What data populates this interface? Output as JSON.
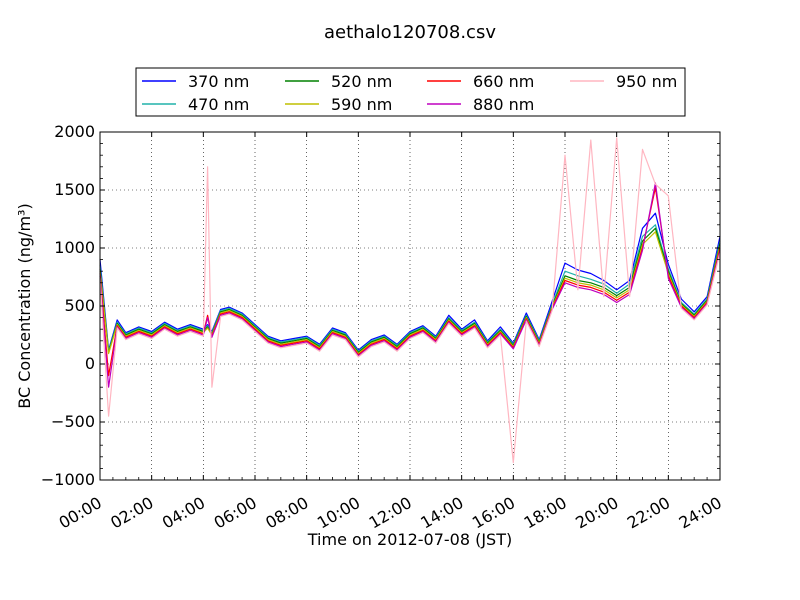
{
  "chart_data": {
    "type": "line",
    "title": "aethalo120708.csv",
    "xlabel": "Time on 2012-07-08 (JST)",
    "ylabel": "BC Concentration (ng/m³)",
    "xlim": [
      "00:00",
      "24:00"
    ],
    "ylim": [
      -1000,
      2000
    ],
    "x_ticks": [
      "00:00",
      "02:00",
      "04:00",
      "06:00",
      "08:00",
      "10:00",
      "12:00",
      "14:00",
      "16:00",
      "18:00",
      "20:00",
      "22:00",
      "24:00"
    ],
    "y_ticks": [
      -1000,
      -500,
      0,
      500,
      1000,
      1500,
      2000
    ],
    "grid": true,
    "legend_position": "top-center",
    "series": [
      {
        "name": "370 nm",
        "color": "#0000ff",
        "x": [
          "00:00",
          "00:20",
          "00:40",
          "01:00",
          "01:30",
          "02:00",
          "02:30",
          "03:00",
          "03:30",
          "04:00",
          "04:10",
          "04:20",
          "04:40",
          "05:00",
          "05:30",
          "06:00",
          "06:30",
          "07:00",
          "07:30",
          "08:00",
          "08:30",
          "09:00",
          "09:30",
          "10:00",
          "10:30",
          "11:00",
          "11:30",
          "12:00",
          "12:30",
          "13:00",
          "13:30",
          "14:00",
          "14:30",
          "15:00",
          "15:30",
          "16:00",
          "16:30",
          "17:00",
          "17:30",
          "18:00",
          "18:30",
          "19:00",
          "19:30",
          "20:00",
          "20:30",
          "21:00",
          "21:30",
          "22:00",
          "22:30",
          "23:00",
          "23:30",
          "24:00"
        ],
        "y": [
          900,
          120,
          380,
          270,
          320,
          280,
          360,
          300,
          340,
          300,
          340,
          280,
          470,
          490,
          440,
          340,
          240,
          200,
          220,
          240,
          170,
          310,
          270,
          120,
          210,
          250,
          170,
          280,
          330,
          240,
          420,
          300,
          380,
          200,
          320,
          180,
          440,
          210,
          540,
          870,
          810,
          780,
          720,
          640,
          720,
          1170,
          1300,
          860,
          560,
          450,
          580,
          1100
        ]
      },
      {
        "name": "470 nm",
        "color": "#20b2aa",
        "x": [
          "00:00",
          "00:20",
          "00:40",
          "01:00",
          "01:30",
          "02:00",
          "02:30",
          "03:00",
          "03:30",
          "04:00",
          "04:10",
          "04:20",
          "04:40",
          "05:00",
          "05:30",
          "06:00",
          "06:30",
          "07:00",
          "07:30",
          "08:00",
          "08:30",
          "09:00",
          "09:30",
          "10:00",
          "10:30",
          "11:00",
          "11:30",
          "12:00",
          "12:30",
          "13:00",
          "13:30",
          "14:00",
          "14:30",
          "15:00",
          "15:30",
          "16:00",
          "16:30",
          "17:00",
          "17:30",
          "18:00",
          "18:30",
          "19:00",
          "19:30",
          "20:00",
          "20:30",
          "21:00",
          "21:30",
          "22:00",
          "22:30",
          "23:00",
          "23:30",
          "24:00"
        ],
        "y": [
          850,
          110,
          360,
          260,
          310,
          270,
          350,
          290,
          330,
          290,
          330,
          270,
          460,
          480,
          430,
          330,
          230,
          190,
          210,
          230,
          160,
          300,
          260,
          110,
          200,
          240,
          160,
          270,
          320,
          230,
          400,
          290,
          360,
          190,
          300,
          170,
          420,
          200,
          510,
          800,
          760,
          730,
          690,
          610,
          690,
          1100,
          1200,
          820,
          530,
          430,
          560,
          1060
        ]
      },
      {
        "name": "520 nm",
        "color": "#008000",
        "x": [
          "00:00",
          "00:20",
          "00:40",
          "01:00",
          "01:30",
          "02:00",
          "02:30",
          "03:00",
          "03:30",
          "04:00",
          "04:10",
          "04:20",
          "04:40",
          "05:00",
          "05:30",
          "06:00",
          "06:30",
          "07:00",
          "07:30",
          "08:00",
          "08:30",
          "09:00",
          "09:30",
          "10:00",
          "10:30",
          "11:00",
          "11:30",
          "12:00",
          "12:30",
          "13:00",
          "13:30",
          "14:00",
          "14:30",
          "15:00",
          "15:30",
          "16:00",
          "16:30",
          "17:00",
          "17:30",
          "18:00",
          "18:30",
          "19:00",
          "19:30",
          "20:00",
          "20:30",
          "21:00",
          "21:30",
          "22:00",
          "22:30",
          "23:00",
          "23:30",
          "24:00"
        ],
        "y": [
          820,
          100,
          350,
          250,
          300,
          260,
          340,
          280,
          320,
          280,
          320,
          260,
          450,
          470,
          420,
          320,
          220,
          180,
          200,
          220,
          150,
          290,
          250,
          100,
          190,
          230,
          150,
          260,
          310,
          220,
          390,
          280,
          350,
          180,
          290,
          160,
          410,
          190,
          500,
          760,
          720,
          700,
          660,
          590,
          660,
          1060,
          1170,
          800,
          520,
          420,
          550,
          1040
        ]
      },
      {
        "name": "590 nm",
        "color": "#bfbf00",
        "x": [
          "00:00",
          "00:20",
          "00:40",
          "01:00",
          "01:30",
          "02:00",
          "02:30",
          "03:00",
          "03:30",
          "04:00",
          "04:10",
          "04:20",
          "04:40",
          "05:00",
          "05:30",
          "06:00",
          "06:30",
          "07:00",
          "07:30",
          "08:00",
          "08:30",
          "09:00",
          "09:30",
          "10:00",
          "10:30",
          "11:00",
          "11:30",
          "12:00",
          "12:30",
          "13:00",
          "13:30",
          "14:00",
          "14:30",
          "15:00",
          "15:30",
          "16:00",
          "16:30",
          "17:00",
          "17:30",
          "18:00",
          "18:30",
          "19:00",
          "19:30",
          "20:00",
          "20:30",
          "21:00",
          "21:30",
          "22:00",
          "22:30",
          "23:00",
          "23:30",
          "24:00"
        ],
        "y": [
          800,
          90,
          340,
          240,
          290,
          250,
          330,
          270,
          310,
          270,
          310,
          250,
          440,
          460,
          410,
          310,
          210,
          170,
          190,
          210,
          140,
          280,
          240,
          90,
          180,
          220,
          140,
          250,
          300,
          210,
          380,
          270,
          340,
          170,
          280,
          150,
          400,
          180,
          490,
          740,
          700,
          680,
          640,
          570,
          640,
          1030,
          1140,
          780,
          510,
          410,
          540,
          1020
        ]
      },
      {
        "name": "660 nm",
        "color": "#ff0000",
        "x": [
          "00:00",
          "00:20",
          "00:40",
          "01:00",
          "01:30",
          "02:00",
          "02:30",
          "03:00",
          "03:30",
          "04:00",
          "04:10",
          "04:20",
          "04:40",
          "05:00",
          "05:30",
          "06:00",
          "06:30",
          "07:00",
          "07:30",
          "08:00",
          "08:30",
          "09:00",
          "09:30",
          "10:00",
          "10:30",
          "11:00",
          "11:30",
          "12:00",
          "12:30",
          "13:00",
          "13:30",
          "14:00",
          "14:30",
          "15:00",
          "15:30",
          "16:00",
          "16:30",
          "17:00",
          "17:30",
          "18:00",
          "18:30",
          "19:00",
          "19:30",
          "20:00",
          "20:30",
          "21:00",
          "21:30",
          "22:00",
          "22:30",
          "23:00",
          "23:30",
          "24:00"
        ],
        "y": [
          780,
          -100,
          330,
          230,
          280,
          240,
          320,
          260,
          300,
          260,
          420,
          240,
          430,
          450,
          400,
          300,
          200,
          160,
          180,
          200,
          130,
          270,
          230,
          80,
          170,
          210,
          130,
          240,
          290,
          200,
          370,
          260,
          330,
          160,
          270,
          140,
          390,
          170,
          480,
          720,
          680,
          660,
          620,
          550,
          620,
          1000,
          1520,
          760,
          500,
          400,
          530,
          1000
        ]
      },
      {
        "name": "880 nm",
        "color": "#bf00bf",
        "x": [
          "00:00",
          "00:20",
          "00:40",
          "01:00",
          "01:30",
          "02:00",
          "02:30",
          "03:00",
          "03:30",
          "04:00",
          "04:10",
          "04:20",
          "04:40",
          "05:00",
          "05:30",
          "06:00",
          "06:30",
          "07:00",
          "07:30",
          "08:00",
          "08:30",
          "09:00",
          "09:30",
          "10:00",
          "10:30",
          "11:00",
          "11:30",
          "12:00",
          "12:30",
          "13:00",
          "13:30",
          "14:00",
          "14:30",
          "15:00",
          "15:30",
          "16:00",
          "16:30",
          "17:00",
          "17:30",
          "18:00",
          "18:30",
          "19:00",
          "19:30",
          "20:00",
          "20:30",
          "21:00",
          "21:30",
          "22:00",
          "22:30",
          "23:00",
          "23:30",
          "24:00"
        ],
        "y": [
          760,
          -200,
          320,
          220,
          270,
          230,
          310,
          250,
          290,
          250,
          400,
          230,
          420,
          440,
          390,
          290,
          190,
          150,
          170,
          190,
          120,
          260,
          220,
          70,
          160,
          200,
          120,
          230,
          280,
          190,
          360,
          250,
          320,
          150,
          260,
          130,
          380,
          160,
          470,
          700,
          660,
          640,
          600,
          530,
          600,
          980,
          1560,
          740,
          490,
          390,
          520,
          980
        ]
      },
      {
        "name": "950 nm",
        "color": "#ffb6c1",
        "x": [
          "00:00",
          "00:20",
          "00:40",
          "01:00",
          "01:30",
          "02:00",
          "02:30",
          "03:00",
          "03:30",
          "04:00",
          "04:10",
          "04:20",
          "04:40",
          "05:00",
          "05:30",
          "06:00",
          "06:30",
          "07:00",
          "07:30",
          "08:00",
          "08:30",
          "09:00",
          "09:30",
          "10:00",
          "10:30",
          "11:00",
          "11:30",
          "12:00",
          "12:30",
          "13:00",
          "13:30",
          "14:00",
          "14:30",
          "15:00",
          "15:30",
          "16:00",
          "16:30",
          "17:00",
          "17:30",
          "18:00",
          "18:30",
          "19:00",
          "19:30",
          "20:00",
          "20:30",
          "21:00",
          "21:30",
          "22:00",
          "22:30",
          "23:00",
          "23:30",
          "24:00"
        ],
        "y": [
          740,
          -450,
          310,
          210,
          260,
          220,
          300,
          240,
          280,
          240,
          1700,
          -200,
          410,
          430,
          380,
          280,
          180,
          140,
          160,
          180,
          110,
          250,
          210,
          60,
          150,
          190,
          110,
          220,
          270,
          180,
          350,
          240,
          310,
          140,
          250,
          -850,
          370,
          150,
          460,
          1800,
          640,
          1930,
          580,
          1950,
          580,
          1850,
          1550,
          1450,
          480,
          380,
          510,
          960
        ]
      }
    ]
  }
}
